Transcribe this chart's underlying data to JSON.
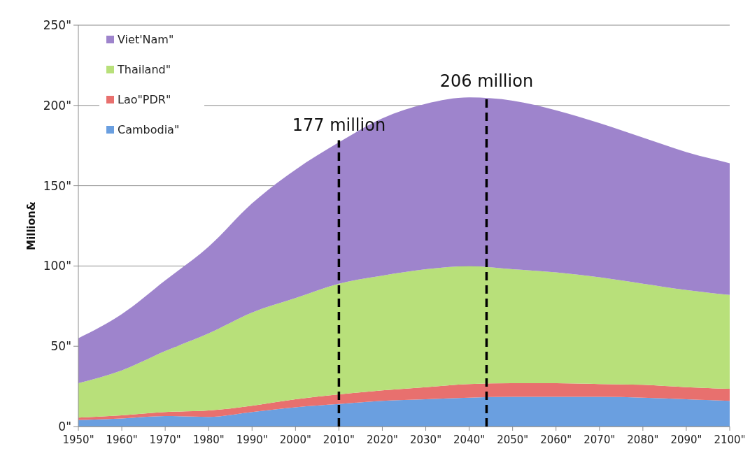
{
  "chart_data": {
    "type": "area",
    "stacked": true,
    "ylabel": "Million&",
    "x": [
      1950,
      1960,
      1970,
      1980,
      1990,
      2000,
      2010,
      2020,
      2030,
      2040,
      2050,
      2060,
      2070,
      2080,
      2090,
      2100
    ],
    "series": [
      {
        "name": "Cambodia\"",
        "color": "#6a9fe0",
        "values": [
          4,
          5,
          6.5,
          6,
          9,
          12,
          14,
          16,
          17,
          18,
          18.5,
          18.5,
          18.5,
          18,
          17,
          16
        ]
      },
      {
        "name": "Lao\"PDR\"",
        "color": "#e8706e",
        "values": [
          1.5,
          2,
          2.5,
          4,
          4,
          5,
          6,
          6.5,
          7.5,
          8.5,
          8.5,
          8.5,
          8,
          8,
          7.5,
          7.5
        ]
      },
      {
        "name": "Thailand\"",
        "color": "#b8e07a",
        "values": [
          21.5,
          28,
          38,
          48,
          58,
          63,
          69,
          71.5,
          73.5,
          73.5,
          71,
          69,
          66.5,
          63,
          60.5,
          58.5
        ]
      },
      {
        "name": "Viet'Nam\"",
        "color": "#9e84cc",
        "values": [
          28,
          35,
          44,
          54,
          68,
          80,
          88,
          98,
          103,
          105,
          105,
          101,
          96,
          91,
          86,
          82
        ]
      }
    ],
    "xlim": [
      1950,
      2100
    ],
    "xticks": [
      {
        "value": 1950,
        "label": "1950\""
      },
      {
        "value": 1960,
        "label": "1960\""
      },
      {
        "value": 1970,
        "label": "1970\""
      },
      {
        "value": 1980,
        "label": "1980\""
      },
      {
        "value": 1990,
        "label": "1990\""
      },
      {
        "value": 2000,
        "label": "2000\""
      },
      {
        "value": 2010,
        "label": "2010\""
      },
      {
        "value": 2020,
        "label": "2020\""
      },
      {
        "value": 2030,
        "label": "2030\""
      },
      {
        "value": 2040,
        "label": "2040\""
      },
      {
        "value": 2050,
        "label": "2050\""
      },
      {
        "value": 2060,
        "label": "2060\""
      },
      {
        "value": 2070,
        "label": "2070\""
      },
      {
        "value": 2080,
        "label": "2080\""
      },
      {
        "value": 2090,
        "label": "2090\""
      },
      {
        "value": 2100,
        "label": "2100\""
      }
    ],
    "ylim": [
      0,
      250
    ],
    "yticks": [
      {
        "value": 0,
        "label": "0\""
      },
      {
        "value": 50,
        "label": "50\""
      },
      {
        "value": 100,
        "label": "100\""
      },
      {
        "value": 150,
        "label": "150\""
      },
      {
        "value": 200,
        "label": "200\""
      },
      {
        "value": 250,
        "label": "250\""
      }
    ],
    "grid": "y",
    "legend": "top left",
    "ref_lines": [
      {
        "axis": "x",
        "value": 2010,
        "label": "177 million",
        "line_style": "dashed",
        "color": "#000000"
      },
      {
        "axis": "x",
        "value": 2044,
        "label": "206 million",
        "line_style": "dashed",
        "color": "#000000"
      }
    ]
  }
}
